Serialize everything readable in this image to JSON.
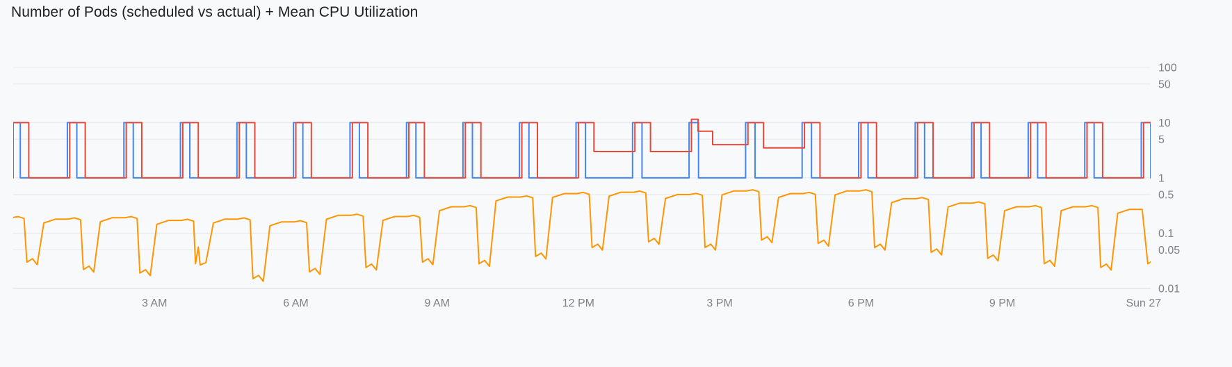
{
  "page": {
    "background": "#f8f9fa"
  },
  "chart_data": {
    "type": "line",
    "title": "Number of Pods (scheduled vs actual) + Mean CPU Utilization",
    "y_scale": "log",
    "ylim": [
      0.01,
      141
    ],
    "x_range_hours": [
      0,
      24.15
    ],
    "grid": true,
    "legend": "none",
    "axis_label_color": "#7d8287",
    "gridline_color": "#e6e8eb",
    "baseline_color": "#d7dadd",
    "y_ticks": [
      {
        "value": 100,
        "label": "100"
      },
      {
        "value": 50,
        "label": "50"
      },
      {
        "value": 10,
        "label": "10"
      },
      {
        "value": 5,
        "label": "5"
      },
      {
        "value": 1,
        "label": "1"
      },
      {
        "value": 0.5,
        "label": "0.5"
      },
      {
        "value": 0.1,
        "label": "0.1"
      },
      {
        "value": 0.05,
        "label": "0.05"
      },
      {
        "value": 0.01,
        "label": "0.01"
      }
    ],
    "x_ticks": [
      {
        "hour": 3,
        "label": "3 AM"
      },
      {
        "hour": 6,
        "label": "6 AM"
      },
      {
        "hour": 9,
        "label": "9 AM"
      },
      {
        "hour": 12,
        "label": "12 PM"
      },
      {
        "hour": 15,
        "label": "3 PM"
      },
      {
        "hour": 18,
        "label": "6 PM"
      },
      {
        "hour": 21,
        "label": "9 PM"
      },
      {
        "hour": 24,
        "label": "Sun 27"
      }
    ],
    "period_hours": 1.2,
    "series_meta": [
      {
        "name": "Scheduled pods",
        "color": "#4285f4",
        "pattern": "square wave between 1 and 10 pods, narrow pulses"
      },
      {
        "name": "Actual pods",
        "color": "#e5493a",
        "pattern": "square wave between baseline and 10 pods, wider pulses; baseline rises to 3-4 between ~12:20 PM and ~5 PM; one pulse near 2:30 PM overshoots to ~11.5 then steps to ~7"
      },
      {
        "name": "Mean CPU utilization",
        "color": "#ff9500",
        "pattern": "plateau (0.15-0.6) with one sharp dip (0.015-0.08) per cycle; plateau rises toward midday and falls at night"
      }
    ],
    "cycles": [
      {
        "t": -0.05,
        "pods": 10,
        "peak": 10,
        "base": 1,
        "high": 0.19,
        "low": 0.03
      },
      {
        "t": 1.15,
        "pods": 10,
        "peak": 10,
        "base": 1,
        "high": 0.18,
        "low": 0.022
      },
      {
        "t": 2.35,
        "pods": 10,
        "peak": 10,
        "base": 1,
        "high": 0.19,
        "low": 0.019
      },
      {
        "t": 3.55,
        "pods": 10,
        "peak": 10,
        "base": 1,
        "high": 0.17,
        "low": 0.028,
        "double_dip": true
      },
      {
        "t": 4.75,
        "pods": 10,
        "peak": 10,
        "base": 1,
        "high": 0.18,
        "low": 0.015
      },
      {
        "t": 5.95,
        "pods": 10,
        "peak": 10,
        "base": 1,
        "high": 0.16,
        "low": 0.02
      },
      {
        "t": 7.15,
        "pods": 10,
        "peak": 10,
        "base": 1,
        "high": 0.21,
        "low": 0.024
      },
      {
        "t": 8.35,
        "pods": 10,
        "peak": 10,
        "base": 1,
        "high": 0.2,
        "low": 0.03
      },
      {
        "t": 9.55,
        "pods": 10,
        "peak": 10,
        "base": 1,
        "high": 0.3,
        "low": 0.028
      },
      {
        "t": 10.75,
        "pods": 10,
        "peak": 10,
        "base": 1,
        "high": 0.45,
        "low": 0.038
      },
      {
        "t": 11.95,
        "pods": 10,
        "peak": 10,
        "base": 3,
        "high": 0.52,
        "low": 0.055
      },
      {
        "t": 13.15,
        "pods": 10,
        "peak": 10,
        "base": 3,
        "high": 0.55,
        "low": 0.07
      },
      {
        "t": 14.35,
        "pods": 10,
        "peak": 11.5,
        "step_dt": 0.14,
        "step_v": 7,
        "fall_dt": 0.5,
        "base": 4,
        "high": 0.5,
        "low": 0.055
      },
      {
        "t": 15.55,
        "pods": 10,
        "peak": 10,
        "base": 3.5,
        "high": 0.58,
        "low": 0.075
      },
      {
        "t": 16.75,
        "pods": 10,
        "peak": 10,
        "base": 1,
        "high": 0.52,
        "low": 0.065
      },
      {
        "t": 17.95,
        "pods": 10,
        "peak": 10,
        "base": 1,
        "high": 0.58,
        "low": 0.055
      },
      {
        "t": 19.15,
        "pods": 10,
        "peak": 10,
        "base": 1,
        "high": 0.42,
        "low": 0.045
      },
      {
        "t": 20.35,
        "pods": 10,
        "peak": 10,
        "base": 1,
        "high": 0.35,
        "low": 0.035
      },
      {
        "t": 21.55,
        "pods": 10,
        "peak": 10,
        "base": 1,
        "high": 0.3,
        "low": 0.028
      },
      {
        "t": 22.75,
        "pods": 10,
        "peak": 10,
        "base": 1,
        "high": 0.3,
        "low": 0.024
      },
      {
        "t": 23.95,
        "pods": 10,
        "peak": 10,
        "base": 1,
        "high": 0.27,
        "low": 0.028,
        "dip_dt": 0.14
      }
    ]
  }
}
